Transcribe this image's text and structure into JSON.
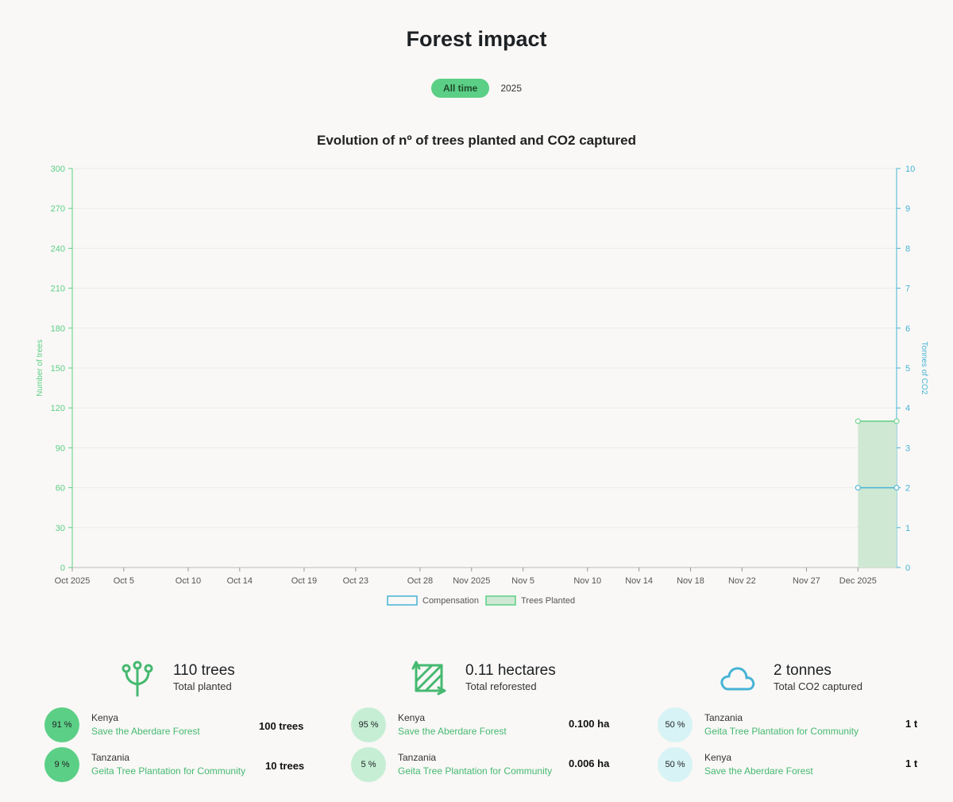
{
  "page": {
    "title": "Forest impact"
  },
  "filters": [
    {
      "label": "All time",
      "active": true
    },
    {
      "label": "2025",
      "active": false
    }
  ],
  "chart_title": "Evolution of nº of trees planted and CO2 captured",
  "chart_data": {
    "type": "area",
    "title": "Evolution of nº of trees planted and CO2 captured",
    "x_tick_labels": [
      "Oct 2025",
      "Oct 5",
      "Oct 10",
      "Oct 14",
      "Oct 19",
      "Oct 23",
      "Oct 28",
      "Nov 2025",
      "Nov 5",
      "Nov 10",
      "Nov 14",
      "Nov 18",
      "Nov 22",
      "Nov 27",
      "Dec 2025"
    ],
    "x_tick_days": [
      0,
      4,
      9,
      13,
      18,
      22,
      27,
      31,
      35,
      40,
      44,
      48,
      52,
      57,
      61
    ],
    "x_range_days": [
      0,
      64
    ],
    "y_left": {
      "label": "Number of trees",
      "ticks": [
        0,
        30,
        60,
        90,
        120,
        150,
        180,
        210,
        240,
        270,
        300
      ],
      "range": [
        0,
        300
      ],
      "color": "#5ccf86"
    },
    "y_right": {
      "label": "Tonnes of CO2",
      "ticks": [
        0,
        1,
        2,
        3,
        4,
        5,
        6,
        7,
        8,
        9,
        10
      ],
      "range": [
        0,
        10
      ],
      "color": "#46b3d6"
    },
    "grid": true,
    "legend_position": "bottom",
    "series": [
      {
        "name": "Compensation",
        "axis": "right",
        "kind": "line",
        "color": "#46b3d6",
        "points": [
          {
            "x": "Dec 2025",
            "day": 61,
            "y": 2
          },
          {
            "x": "Dec 4",
            "day": 64,
            "y": 2
          }
        ]
      },
      {
        "name": "Trees Planted",
        "axis": "left",
        "kind": "area",
        "color": "#5ccf86",
        "points": [
          {
            "x": "Dec 2025",
            "day": 61,
            "y": 110
          },
          {
            "x": "Dec 4",
            "day": 64,
            "y": 110
          }
        ]
      }
    ]
  },
  "stats": [
    {
      "icon": "tree-icon",
      "value": "110 trees",
      "label": "Total planted",
      "rows": [
        {
          "percent": "91 %",
          "country": "Kenya",
          "project": "Save the Aberdare Forest",
          "amount": "100 trees",
          "badge_color": "#5ccf86"
        },
        {
          "percent": "9 %",
          "country": "Tanzania",
          "project": "Geita Tree Plantation for Community",
          "amount": "10 trees",
          "badge_color": "#5ccf86"
        }
      ]
    },
    {
      "icon": "reforest-area-icon",
      "value": "0.11 hectares",
      "label": "Total reforested",
      "rows": [
        {
          "percent": "95 %",
          "country": "Kenya",
          "project": "Save the Aberdare Forest",
          "amount": "0.100 ha",
          "badge_color": "#c6eed4"
        },
        {
          "percent": "5 %",
          "country": "Tanzania",
          "project": "Geita Tree Plantation for Community",
          "amount": "0.006 ha",
          "badge_color": "#c6eed4"
        }
      ]
    },
    {
      "icon": "cloud-icon",
      "value": "2 tonnes",
      "label": "Total CO2 captured",
      "rows": [
        {
          "percent": "50 %",
          "country": "Tanzania",
          "project": "Geita Tree Plantation for Community",
          "amount": "1 t",
          "badge_color": "#d7f3f5"
        },
        {
          "percent": "50 %",
          "country": "Kenya",
          "project": "Save the Aberdare Forest",
          "amount": "1 t",
          "badge_color": "#d7f3f5"
        }
      ]
    }
  ],
  "colors": {
    "accent": "#5ccf86",
    "co2": "#46b3d6",
    "link": "#46b971"
  }
}
